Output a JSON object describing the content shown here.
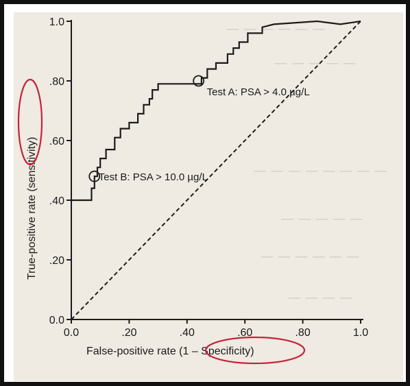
{
  "chart_data": {
    "type": "line",
    "title": "",
    "xlabel": "False-positive rate (1 – Specificity)",
    "ylabel": "True-positive rate (sensitivity)",
    "xlim": [
      0,
      1
    ],
    "ylim": [
      0,
      1
    ],
    "x_ticks": [
      "0.0",
      ".20",
      ".40",
      ".60",
      ".80",
      "1.0"
    ],
    "y_ticks": [
      "0.0",
      ".20",
      ".40",
      ".60",
      ".80",
      "1.0"
    ],
    "grid": false,
    "series": [
      {
        "name": "",
        "style": "solid",
        "points": [
          [
            0.0,
            0.4
          ],
          [
            0.07,
            0.4
          ],
          [
            0.07,
            0.44
          ],
          [
            0.08,
            0.44
          ],
          [
            0.08,
            0.48
          ],
          [
            0.09,
            0.48
          ],
          [
            0.09,
            0.51
          ],
          [
            0.1,
            0.51
          ],
          [
            0.1,
            0.54
          ],
          [
            0.12,
            0.54
          ],
          [
            0.12,
            0.57
          ],
          [
            0.15,
            0.57
          ],
          [
            0.15,
            0.61
          ],
          [
            0.17,
            0.61
          ],
          [
            0.17,
            0.64
          ],
          [
            0.2,
            0.64
          ],
          [
            0.2,
            0.66
          ],
          [
            0.23,
            0.66
          ],
          [
            0.23,
            0.69
          ],
          [
            0.25,
            0.69
          ],
          [
            0.25,
            0.72
          ],
          [
            0.27,
            0.72
          ],
          [
            0.27,
            0.74
          ],
          [
            0.28,
            0.74
          ],
          [
            0.28,
            0.77
          ],
          [
            0.3,
            0.77
          ],
          [
            0.3,
            0.79
          ],
          [
            0.45,
            0.79
          ],
          [
            0.45,
            0.81
          ],
          [
            0.47,
            0.81
          ],
          [
            0.47,
            0.84
          ],
          [
            0.5,
            0.84
          ],
          [
            0.5,
            0.86
          ],
          [
            0.54,
            0.86
          ],
          [
            0.54,
            0.89
          ],
          [
            0.56,
            0.89
          ],
          [
            0.56,
            0.91
          ],
          [
            0.58,
            0.91
          ],
          [
            0.58,
            0.93
          ],
          [
            0.61,
            0.93
          ],
          [
            0.61,
            0.96
          ],
          [
            0.66,
            0.96
          ],
          [
            0.66,
            0.98
          ],
          [
            0.7,
            0.99
          ],
          [
            0.85,
            1.0
          ],
          [
            0.93,
            0.99
          ],
          [
            1.0,
            1.0
          ]
        ]
      },
      {
        "name": "",
        "style": "dashed",
        "points": [
          [
            0.0,
            0.0
          ],
          [
            1.0,
            1.0
          ]
        ]
      }
    ],
    "annotations": [
      {
        "text": "Test A: PSA > 4.0 µg/L",
        "x": 0.44,
        "y": 0.8,
        "marker": "circle"
      },
      {
        "text": "Test B: PSA > 10.0 µg/L",
        "x": 0.08,
        "y": 0.48,
        "marker": "circle"
      }
    ],
    "highlight_circles": [
      "ylabel-sensitivity",
      "xlabel-specificity"
    ],
    "colors": {
      "ink": "#1b1b1b",
      "highlight": "#c8213a",
      "paper": "#efeae2"
    }
  }
}
